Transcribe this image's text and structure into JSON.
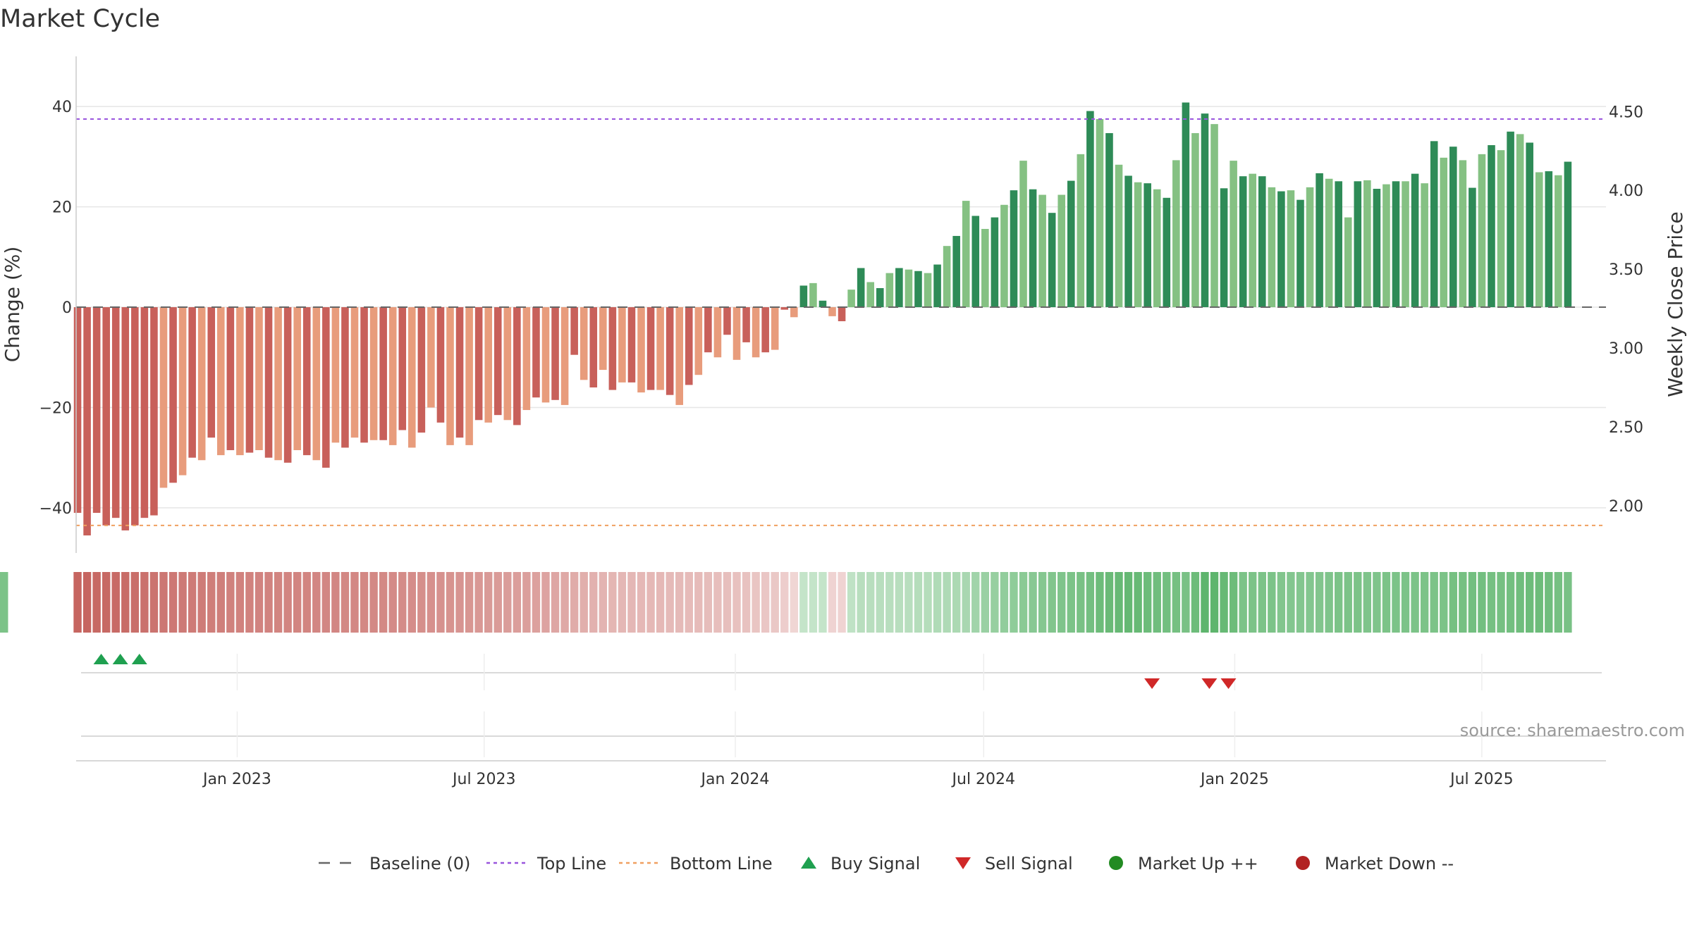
{
  "chart_data": {
    "type": "bar",
    "title": "Market Cycle",
    "ylabel": "Change (%)",
    "y2label": "Weekly Close Price",
    "ylim": [
      -49,
      50
    ],
    "y2lim": [
      1.7,
      4.85
    ],
    "yticks": [
      -40,
      -20,
      0,
      20,
      40
    ],
    "yticks_labels": [
      "−40",
      "−20",
      "0",
      "20",
      "40"
    ],
    "y2ticks": [
      2.0,
      2.5,
      3.0,
      3.5,
      4.0,
      4.5
    ],
    "y2ticks_labels": [
      "2.00",
      "2.50",
      "3.00",
      "3.50",
      "4.00",
      "4.50"
    ],
    "x_start": "2022-09-05",
    "x_end": "2025-09-30",
    "x_ticks": [
      {
        "date": "2023-01-01",
        "label": "Jan 2023"
      },
      {
        "date": "2023-07-01",
        "label": "Jul 2023"
      },
      {
        "date": "2024-01-01",
        "label": "Jan 2024"
      },
      {
        "date": "2024-07-01",
        "label": "Jul 2024"
      },
      {
        "date": "2025-01-01",
        "label": "Jan 2025"
      },
      {
        "date": "2025-07-01",
        "label": "Jul 2025"
      }
    ],
    "first_week": "2022-09-05",
    "values": [
      -41,
      -45.5,
      -41,
      -43.5,
      -42,
      -44.5,
      -43.5,
      -42,
      -41.5,
      -36,
      -35,
      -33.5,
      -30,
      -30.5,
      -26,
      -29.5,
      -28.5,
      -29.5,
      -29,
      -28.5,
      -30,
      -30.5,
      -31,
      -28.5,
      -29.5,
      -30.5,
      -32,
      -27,
      -28,
      -26,
      -27,
      -26.5,
      -26.5,
      -27.5,
      -24.5,
      -28,
      -25,
      -20,
      -23,
      -27.5,
      -26,
      -27.5,
      -22.5,
      -23,
      -21.5,
      -22.5,
      -23.5,
      -20.5,
      -18,
      -19,
      -18.5,
      -19.5,
      -9.5,
      -14.5,
      -16,
      -12.5,
      -16.5,
      -15,
      -15,
      -17,
      -16.5,
      -16.5,
      -17.5,
      -19.5,
      -15.5,
      -13.5,
      -9,
      -10,
      -5.5,
      -10.5,
      -7,
      -10,
      -9,
      -8.5,
      -0.5,
      -2,
      4.3,
      4.8,
      1.3,
      -1.8,
      -2.8,
      3.5,
      7.8,
      5,
      3.8,
      6.8,
      7.8,
      7.5,
      7.2,
      6.8,
      8.5,
      12.2,
      14.2,
      21.2,
      18.2,
      15.6,
      17.9,
      20.4,
      23.3,
      29.2,
      23.5,
      22.4,
      18.8,
      22.4,
      25.2,
      30.5,
      39.1,
      37.5,
      34.7,
      28.4,
      26.2,
      24.9,
      24.7,
      23.5,
      21.8,
      29.3,
      40.8,
      34.7,
      38.6,
      36.5,
      23.7,
      29.2,
      26.1,
      26.6,
      26.1,
      23.9,
      23.1,
      23.3,
      21.4,
      23.9,
      26.7,
      25.6,
      25.1,
      17.9,
      25.1,
      25.3,
      23.6,
      24.5,
      25.1,
      25.1,
      26.6,
      24.7,
      33.1,
      29.8,
      32,
      29.3,
      23.8,
      30.5,
      32.3,
      31.3,
      35,
      34.5,
      32.8,
      26.9,
      27.1,
      26.3,
      29
    ],
    "shades": [
      0.93,
      0.93,
      0.9,
      0.9,
      0.89,
      0.88,
      0.86,
      0.84,
      0.82,
      0.8,
      0.79,
      0.78,
      0.77,
      0.76,
      0.75,
      0.74,
      0.73,
      0.72,
      0.72,
      0.71,
      0.71,
      0.7,
      0.7,
      0.7,
      0.7,
      0.69,
      0.69,
      0.69,
      0.68,
      0.68,
      0.68,
      0.67,
      0.67,
      0.66,
      0.65,
      0.64,
      0.63,
      0.62,
      0.61,
      0.6,
      0.59,
      0.58,
      0.56,
      0.55,
      0.54,
      0.53,
      0.52,
      0.51,
      0.5,
      0.48,
      0.46,
      0.44,
      0.42,
      0.4,
      0.38,
      0.36,
      0.35,
      0.34,
      0.34,
      0.33,
      0.33,
      0.33,
      0.32,
      0.32,
      0.31,
      0.31,
      0.3,
      0.29,
      0.28,
      0.27,
      0.26,
      0.24,
      0.23,
      0.22,
      0.18,
      0.12,
      -0.22,
      -0.22,
      -0.22,
      0.14,
      0.14,
      -0.25,
      -0.3,
      -0.3,
      -0.3,
      -0.3,
      -0.3,
      -0.3,
      -0.32,
      -0.32,
      -0.35,
      -0.36,
      -0.38,
      -0.4,
      -0.45,
      -0.5,
      -0.52,
      -0.55,
      -0.57,
      -0.6,
      -0.62,
      -0.64,
      -0.66,
      -0.68,
      -0.7,
      -0.72,
      -0.75,
      -0.8,
      -0.82,
      -0.84,
      -0.85,
      -0.84,
      -0.8,
      -0.78,
      -0.76,
      -0.74,
      -0.72,
      -0.8,
      -0.9,
      -0.9,
      -0.84,
      -0.8,
      -0.7,
      -0.7,
      -0.7,
      -0.7,
      -0.66,
      -0.65,
      -0.65,
      -0.65,
      -0.66,
      -0.68,
      -0.7,
      -0.7,
      -0.7,
      -0.68,
      -0.68,
      -0.7,
      -0.7,
      -0.7,
      -0.7,
      -0.7,
      -0.7,
      -0.7,
      -0.74,
      -0.74,
      -0.76,
      -0.76,
      -0.74,
      -0.74,
      -0.76,
      -0.78,
      -0.8,
      -0.8,
      -0.78,
      -0.74,
      -0.72,
      -0.7,
      -0.7
    ],
    "buy_signals": [
      "2022-09-12",
      "2022-09-26",
      "2022-10-10"
    ],
    "sell_signals": [
      "2024-10-21",
      "2024-12-02",
      "2024-12-16"
    ],
    "top_line": 37.5,
    "bottom_line": -43.5,
    "baseline": 0,
    "colors": {
      "neg_dark": "#c8605a",
      "neg_light": "#e89c7c",
      "pos_dark": "#2e8b57",
      "pos_light": "#85c183",
      "top_line": "#9955dd",
      "bottom_line": "#f0a060",
      "baseline": "#666666",
      "buy": "#1fa050",
      "sell": "#d02828",
      "market_up": "#228b22",
      "market_down": "#b22222",
      "heat_neg": "#c25b56",
      "heat_pos": "#4fae5f"
    },
    "legend": [
      {
        "key": "baseline",
        "label": "Baseline (0)"
      },
      {
        "key": "top",
        "label": "Top Line"
      },
      {
        "key": "bottom",
        "label": "Bottom Line"
      },
      {
        "key": "buy",
        "label": "Buy Signal"
      },
      {
        "key": "sell",
        "label": "Sell Signal"
      },
      {
        "key": "up",
        "label": "Market Up ++"
      },
      {
        "key": "down",
        "label": "Market Down --"
      }
    ],
    "source": "source: sharemaestro.com"
  }
}
